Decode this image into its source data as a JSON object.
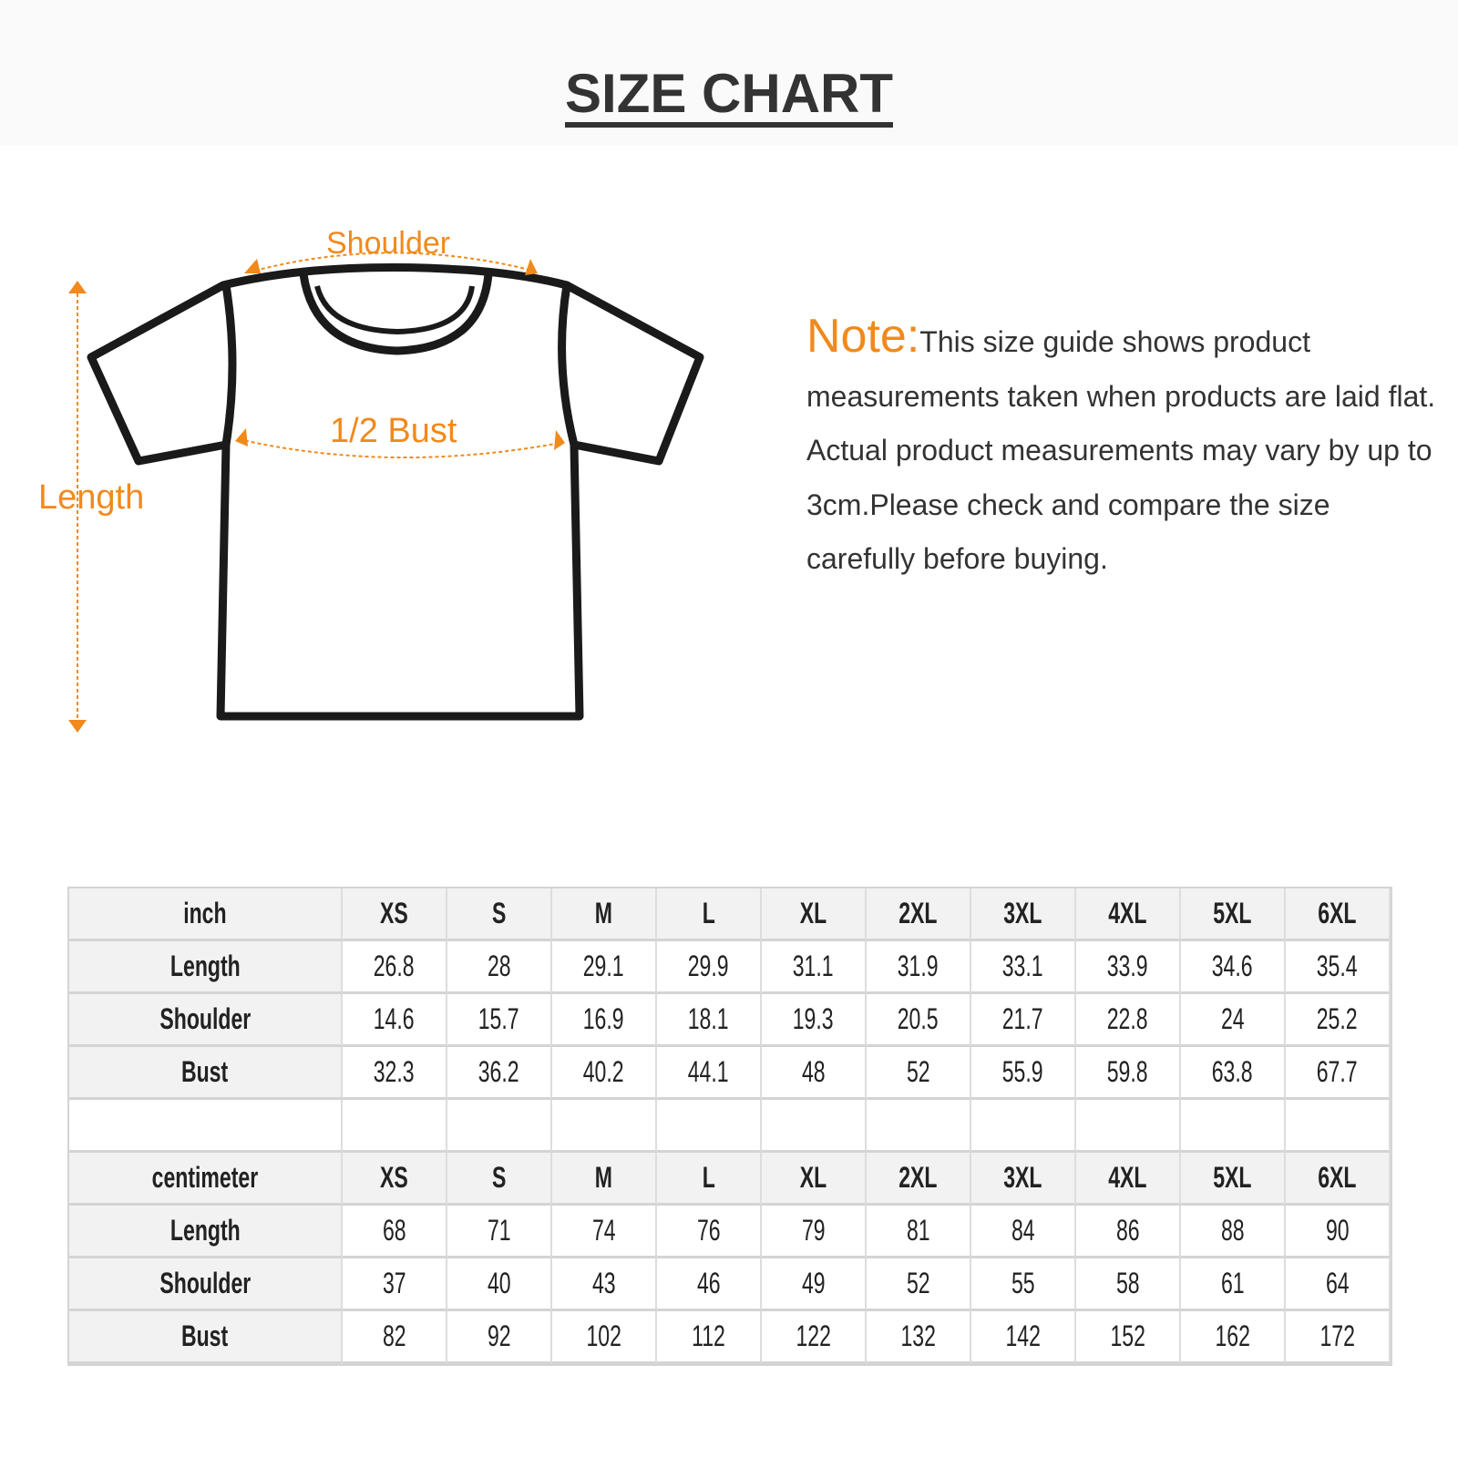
{
  "title": "SIZE CHART",
  "diagram": {
    "shoulder_label": "Shoulder",
    "bust_label": "1/2 Bust",
    "length_label": "Length",
    "accent_color": "#f08a1c",
    "outline_color": "#1a1a1a"
  },
  "note": {
    "label": "Note:",
    "text": "This size guide shows product measurements taken when products are laid flat. Actual product measurements may vary by up to 3cm.Please check and compare the size carefully before buying."
  },
  "sizes": [
    "XS",
    "S",
    "M",
    "L",
    "XL",
    "2XL",
    "3XL",
    "4XL",
    "5XL",
    "6XL"
  ],
  "inch": {
    "unit": "inch",
    "rows": [
      {
        "label": "Length",
        "values": [
          "26.8",
          "28",
          "29.1",
          "29.9",
          "31.1",
          "31.9",
          "33.1",
          "33.9",
          "34.6",
          "35.4"
        ]
      },
      {
        "label": "Shoulder",
        "values": [
          "14.6",
          "15.7",
          "16.9",
          "18.1",
          "19.3",
          "20.5",
          "21.7",
          "22.8",
          "24",
          "25.2"
        ]
      },
      {
        "label": "Bust",
        "values": [
          "32.3",
          "36.2",
          "40.2",
          "44.1",
          "48",
          "52",
          "55.9",
          "59.8",
          "63.8",
          "67.7"
        ]
      }
    ]
  },
  "centimeter": {
    "unit": "centimeter",
    "rows": [
      {
        "label": "Length",
        "values": [
          "68",
          "71",
          "74",
          "76",
          "79",
          "81",
          "84",
          "86",
          "88",
          "90"
        ]
      },
      {
        "label": "Shoulder",
        "values": [
          "37",
          "40",
          "43",
          "46",
          "49",
          "52",
          "55",
          "58",
          "61",
          "64"
        ]
      },
      {
        "label": "Bust",
        "values": [
          "82",
          "92",
          "102",
          "112",
          "122",
          "132",
          "142",
          "152",
          "162",
          "172"
        ]
      }
    ]
  }
}
